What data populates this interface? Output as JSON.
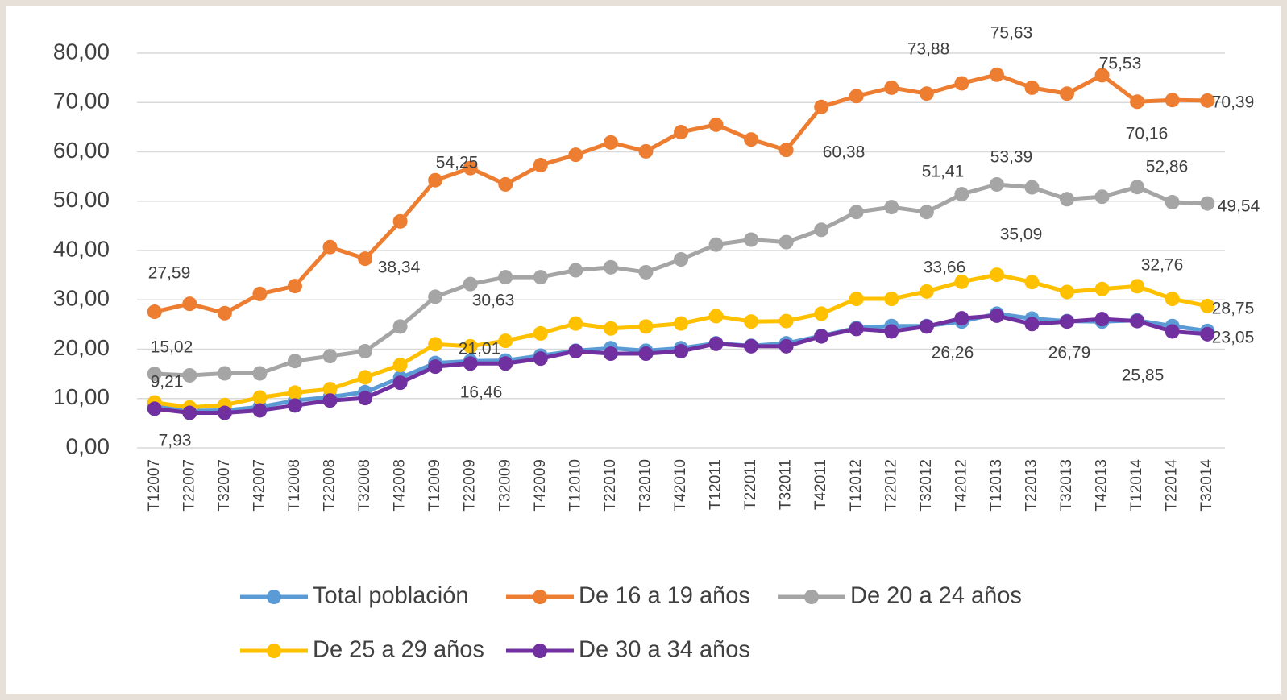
{
  "chart_data": {
    "type": "line",
    "categories": [
      "T12007",
      "T22007",
      "T32007",
      "T42007",
      "T12008",
      "T22008",
      "T32008",
      "T42008",
      "T12009",
      "T22009",
      "T32009",
      "T42009",
      "T12010",
      "T22010",
      "T32010",
      "T42010",
      "T12011",
      "T22011",
      "T32011",
      "T42011",
      "T12012",
      "T22012",
      "T32012",
      "T42012",
      "T12013",
      "T22013",
      "T32013",
      "T42013",
      "T12014",
      "T22014",
      "T32014"
    ],
    "ylim": [
      0,
      80
    ],
    "yticks": [
      {
        "value": 0,
        "label": "0,00"
      },
      {
        "value": 10,
        "label": "10,00"
      },
      {
        "value": 20,
        "label": "20,00"
      },
      {
        "value": 30,
        "label": "30,00"
      },
      {
        "value": 40,
        "label": "40,00"
      },
      {
        "value": 50,
        "label": "50,00"
      },
      {
        "value": 60,
        "label": "60,00"
      },
      {
        "value": 70,
        "label": "70,00"
      },
      {
        "value": 80,
        "label": "80,00"
      }
    ],
    "grid": true,
    "legend": "bottom",
    "series": [
      {
        "name": "Total población",
        "color": "#5b9bd5",
        "values": [
          8.5,
          7.5,
          7.6,
          8.3,
          9.6,
          10.3,
          11.3,
          14.2,
          17.2,
          17.6,
          17.7,
          18.7,
          19.7,
          20.2,
          19.7,
          20.2,
          21.2,
          20.7,
          21.2,
          22.7,
          24.3,
          24.7,
          24.7,
          25.6,
          27.2,
          26.2,
          25.7,
          25.6,
          25.85,
          24.7,
          23.7
        ],
        "value_labels": [
          null,
          null,
          null,
          null,
          null,
          null,
          null,
          null,
          null,
          null,
          null,
          null,
          null,
          null,
          null,
          null,
          null,
          null,
          null,
          null,
          null,
          null,
          null,
          null,
          null,
          null,
          null,
          null,
          "25,85",
          null,
          null
        ]
      },
      {
        "name": "De 16 a 19 años",
        "color": "#ed7d31",
        "values": [
          27.59,
          29.2,
          27.3,
          31.2,
          32.8,
          40.7,
          38.34,
          45.9,
          54.25,
          56.7,
          53.4,
          57.3,
          59.4,
          61.9,
          60.1,
          64,
          65.5,
          62.5,
          60.38,
          69.1,
          71.3,
          73,
          71.8,
          73.88,
          75.63,
          73,
          71.8,
          75.53,
          70.16,
          70.5,
          70.39
        ],
        "value_labels": [
          "27,59",
          null,
          null,
          null,
          null,
          null,
          "38,34",
          null,
          "54,25",
          null,
          null,
          null,
          null,
          null,
          null,
          null,
          null,
          null,
          "60,38",
          null,
          null,
          null,
          null,
          "73,88",
          "75,63",
          null,
          null,
          "75,53",
          "70,16",
          null,
          "70,39"
        ]
      },
      {
        "name": "De 20 a 24 años",
        "color": "#a5a5a5",
        "values": [
          15.02,
          14.7,
          15.1,
          15.1,
          17.6,
          18.6,
          19.6,
          24.6,
          30.63,
          33.2,
          34.6,
          34.6,
          36,
          36.6,
          35.6,
          38.2,
          41.2,
          42.2,
          41.7,
          44.2,
          47.8,
          48.8,
          47.8,
          51.41,
          53.39,
          52.8,
          50.4,
          50.9,
          52.86,
          49.8,
          49.54
        ],
        "value_labels": [
          "15,02",
          null,
          null,
          null,
          null,
          null,
          null,
          null,
          "30,63",
          null,
          null,
          null,
          null,
          null,
          null,
          null,
          null,
          null,
          null,
          null,
          null,
          null,
          null,
          "51,41",
          "53,39",
          null,
          null,
          null,
          "52,86",
          null,
          "49,54"
        ]
      },
      {
        "name": "De 25 a 29 años",
        "color": "#ffc000",
        "values": [
          9.21,
          8.2,
          8.7,
          10.2,
          11.2,
          11.9,
          14.3,
          16.8,
          21.01,
          20.6,
          21.7,
          23.2,
          25.2,
          24.2,
          24.6,
          25.2,
          26.7,
          25.6,
          25.7,
          27.2,
          30.2,
          30.2,
          31.7,
          33.66,
          35.09,
          33.6,
          31.6,
          32.2,
          32.76,
          30.2,
          28.75
        ],
        "value_labels": [
          "9,21",
          null,
          null,
          null,
          null,
          null,
          null,
          null,
          "21,01",
          null,
          null,
          null,
          null,
          null,
          null,
          null,
          null,
          null,
          null,
          null,
          null,
          null,
          null,
          "33,66",
          "35,09",
          null,
          null,
          null,
          "32,76",
          null,
          "28,75"
        ]
      },
      {
        "name": "De 30 a 34 años",
        "color": "#7030a0",
        "values": [
          7.93,
          7.1,
          7.1,
          7.6,
          8.6,
          9.6,
          10.1,
          13.2,
          16.46,
          17.1,
          17.1,
          18.1,
          19.6,
          19.1,
          19.1,
          19.6,
          21.1,
          20.6,
          20.6,
          22.6,
          24.1,
          23.6,
          24.6,
          26.26,
          26.79,
          25.1,
          25.6,
          26.1,
          25.7,
          23.6,
          23.05
        ],
        "value_labels": [
          "7,93",
          null,
          null,
          null,
          null,
          null,
          null,
          null,
          "16,46",
          null,
          null,
          null,
          null,
          null,
          null,
          null,
          null,
          null,
          null,
          null,
          null,
          null,
          null,
          "26,26",
          "26,79",
          null,
          null,
          null,
          null,
          null,
          "23,05"
        ]
      }
    ]
  }
}
